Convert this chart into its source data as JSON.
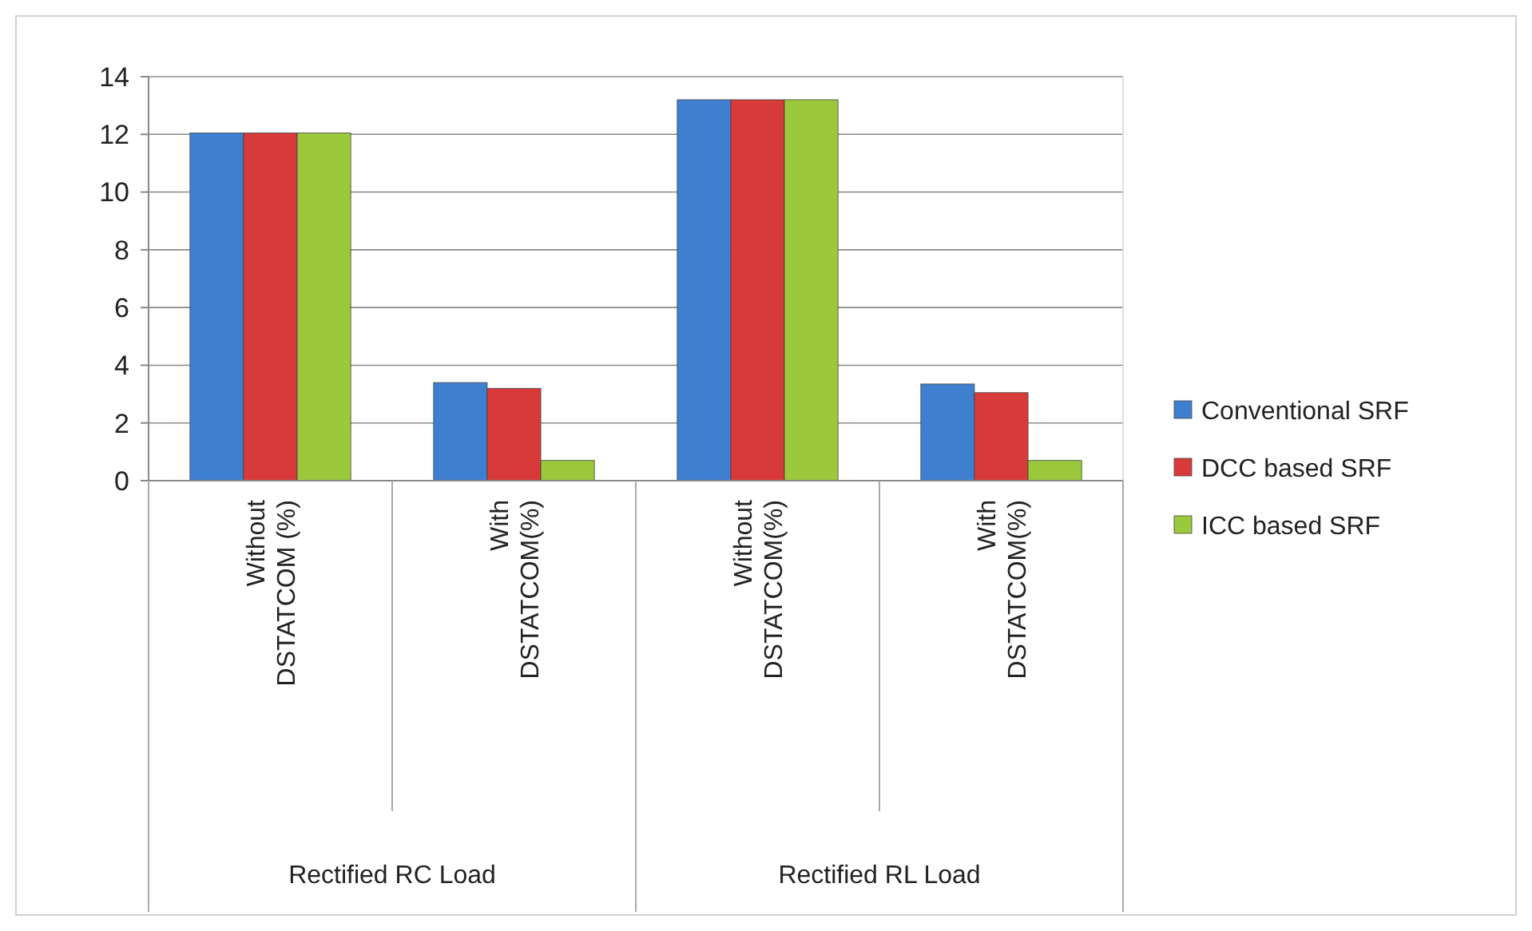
{
  "chart_data": {
    "type": "bar",
    "categories": [
      "Without DSTATCOM (%)",
      "With DSTATCOM(%)",
      "Without DSTATCOM(%)",
      "With DSTATCOM(%)"
    ],
    "series": [
      {
        "name": "Conventional SRF",
        "color": "#3f7fd0",
        "values": [
          12.05,
          3.4,
          13.2,
          3.35
        ]
      },
      {
        "name": "DCC based SRF",
        "color": "#d83a3a",
        "values": [
          12.05,
          3.2,
          13.2,
          3.05
        ]
      },
      {
        "name": "ICC based SRF",
        "color": "#9cc83c",
        "values": [
          12.05,
          0.7,
          13.2,
          0.7
        ]
      }
    ],
    "ylim": [
      0,
      14
    ],
    "yticks": [
      0,
      2,
      4,
      6,
      8,
      10,
      12,
      14
    ],
    "grid": "y",
    "legend": "right",
    "annotations": [
      "Rectified RC Load",
      "Rectified RL Load"
    ]
  }
}
